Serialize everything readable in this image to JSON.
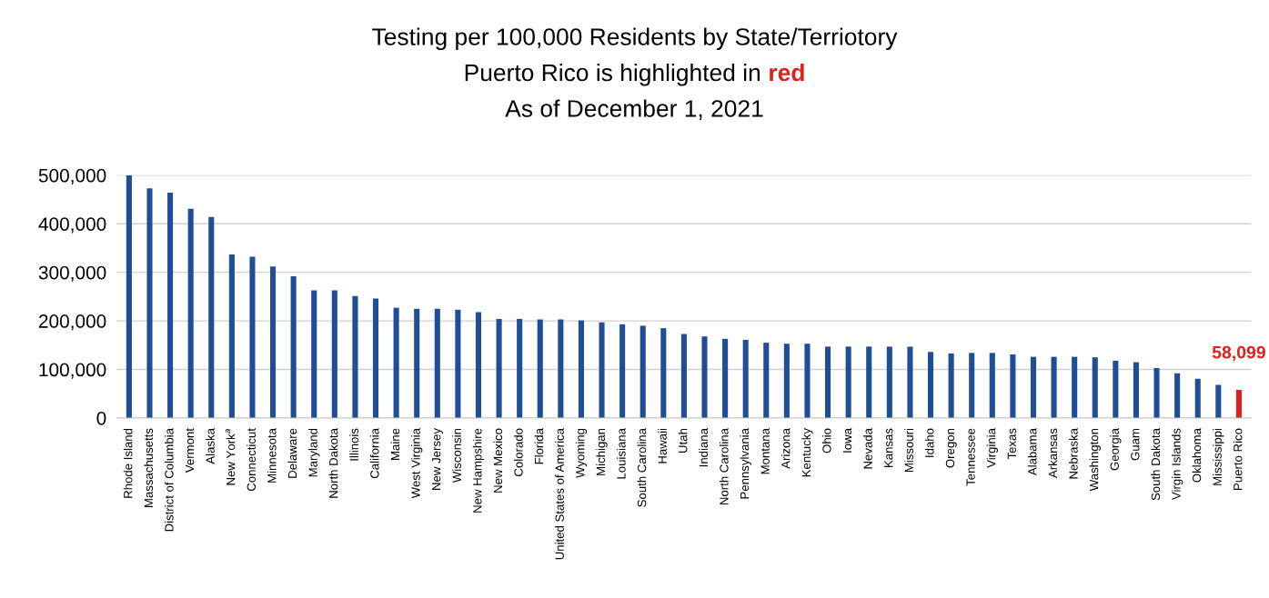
{
  "chart_data": {
    "type": "bar",
    "title": "Testing per 100,000 Residents by State/Terriotory",
    "subtitle": "Puerto Rico is highlighted in red\nAs of December 1, 2021",
    "categories": [
      "Rhode Island",
      "Massachusetts",
      "District of Columbia",
      "Vermont",
      "Alaska",
      "New York$^{a}$",
      "Connecticut",
      "Minnesota",
      "Delaware",
      "Maryland",
      "North Dakota",
      "Illinois",
      "California",
      "Maine",
      "West Virginia",
      "New Jersey",
      "Wisconsin",
      "New Hampshire",
      "New Mexico",
      "Colorado",
      "Florida",
      "United States of America",
      "Wyoming",
      "Michigan",
      "Louisiana",
      "South Carolina",
      "Hawaii",
      "Utah",
      "Indiana",
      "North Carolina",
      "Pennsylvania",
      "Montana",
      "Arizona",
      "Kentucky",
      "Ohio",
      "Iowa",
      "Nevada",
      "Kansas",
      "Missouri",
      "Idaho",
      "Oregon",
      "Tennessee",
      "Virginia",
      "Texas",
      "Alabama",
      "Arkansas",
      "Nebraska",
      "Washington",
      "Georgia",
      "Guam",
      "South Dakota",
      "Virgin Islands",
      "Oklahoma",
      "Mississippi",
      "Puerto Rico"
    ],
    "values": [
      500000,
      473000,
      464000,
      431000,
      414000,
      337000,
      332000,
      312000,
      292000,
      263000,
      263000,
      251000,
      246000,
      227000,
      225000,
      225000,
      223000,
      218000,
      204000,
      204000,
      203000,
      203000,
      201000,
      197000,
      193000,
      190000,
      185000,
      173000,
      168000,
      163000,
      161000,
      155000,
      153000,
      153000,
      147000,
      147000,
      147000,
      147000,
      147000,
      136000,
      133000,
      134000,
      134000,
      131000,
      126000,
      126000,
      126000,
      125000,
      118000,
      115000,
      103000,
      92000,
      81000,
      68000,
      58099
    ],
    "colors": [
      "#1f4e96",
      "#1f4e96",
      "#1f4e96",
      "#1f4e96",
      "#1f4e96",
      "#1f4e96",
      "#1f4e96",
      "#1f4e96",
      "#1f4e96",
      "#1f4e96",
      "#1f4e96",
      "#1f4e96",
      "#1f4e96",
      "#1f4e96",
      "#1f4e96",
      "#1f4e96",
      "#1f4e96",
      "#1f4e96",
      "#1f4e96",
      "#1f4e96",
      "#1f4e96",
      "#1f4e96",
      "#1f4e96",
      "#1f4e96",
      "#1f4e96",
      "#1f4e96",
      "#1f4e96",
      "#1f4e96",
      "#1f4e96",
      "#1f4e96",
      "#1f4e96",
      "#1f4e96",
      "#1f4e96",
      "#1f4e96",
      "#1f4e96",
      "#1f4e96",
      "#1f4e96",
      "#1f4e96",
      "#1f4e96",
      "#1f4e96",
      "#1f4e96",
      "#1f4e96",
      "#1f4e96",
      "#1f4e96",
      "#1f4e96",
      "#1f4e96",
      "#1f4e96",
      "#1f4e96",
      "#1f4e96",
      "#1f4e96",
      "#1f4e96",
      "#1f4e96",
      "#1f4e96",
      "#1f4e96",
      "#e0201b"
    ],
    "value_labels": [
      null,
      null,
      null,
      null,
      null,
      null,
      null,
      null,
      null,
      null,
      null,
      null,
      null,
      null,
      null,
      null,
      null,
      null,
      null,
      null,
      null,
      null,
      null,
      null,
      null,
      null,
      null,
      null,
      null,
      null,
      null,
      null,
      null,
      null,
      null,
      null,
      null,
      null,
      null,
      null,
      null,
      null,
      null,
      null,
      null,
      null,
      null,
      null,
      null,
      null,
      null,
      null,
      null,
      null,
      "58,099"
    ],
    "ylim": [
      0,
      500000
    ],
    "yticks": [
      {
        "value": 0,
        "label": "0"
      },
      {
        "value": 100000,
        "label": "100,000"
      },
      {
        "value": 200000,
        "label": "200,000"
      },
      {
        "value": 300000,
        "label": "300,000"
      },
      {
        "value": 400000,
        "label": "400,000"
      },
      {
        "value": 500000,
        "label": "500,000"
      }
    ],
    "grid": "y"
  }
}
